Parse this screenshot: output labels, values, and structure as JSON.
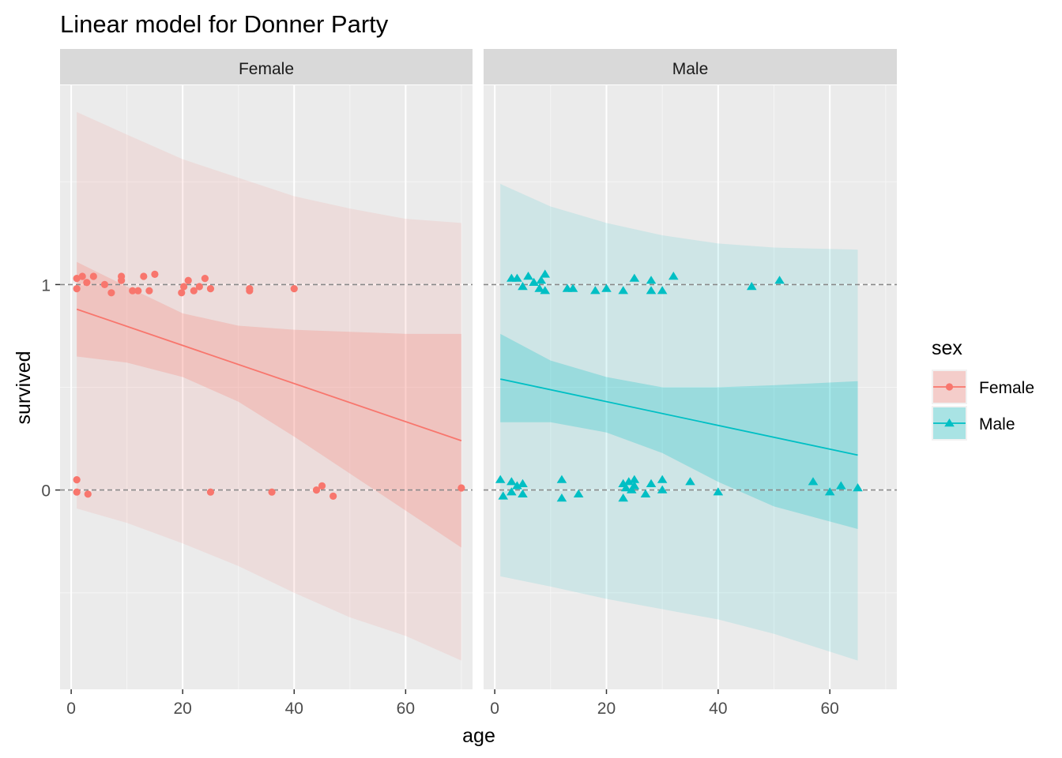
{
  "chart_data": {
    "type": "scatter",
    "title": "Linear model for Donner Party",
    "xlabel": "age",
    "ylabel": "survived",
    "x_ticks": [
      0,
      20,
      40,
      60
    ],
    "y_ticks": [
      0,
      1
    ],
    "xlim": [
      -2,
      72
    ],
    "ylim": [
      -0.97,
      1.97
    ],
    "reference_lines": [
      0,
      1
    ],
    "legend": {
      "title": "sex",
      "position": "right",
      "entries": [
        {
          "label": "Female",
          "color": "#F8766D",
          "shape": "circle"
        },
        {
          "label": "Male",
          "color": "#00BFC4",
          "shape": "triangle"
        }
      ]
    },
    "colors": {
      "panel_bg": "#EBEBEB",
      "strip_bg": "#D9D9D9",
      "female": "#F8766D",
      "male": "#00BFC4"
    },
    "panels": [
      {
        "label": "Female",
        "series": "Female",
        "fit": {
          "x": [
            1,
            70
          ],
          "y": [
            0.88,
            0.24
          ]
        },
        "ci_inner": {
          "x": [
            1,
            10,
            20,
            30,
            40,
            50,
            60,
            70
          ],
          "lower": [
            0.65,
            0.62,
            0.55,
            0.43,
            0.26,
            0.08,
            -0.1,
            -0.28
          ],
          "upper": [
            1.11,
            0.99,
            0.86,
            0.8,
            0.78,
            0.77,
            0.76,
            0.76
          ]
        },
        "ci_outer": {
          "x": [
            1,
            10,
            20,
            30,
            40,
            50,
            60,
            70
          ],
          "lower": [
            -0.09,
            -0.16,
            -0.26,
            -0.37,
            -0.5,
            -0.62,
            -0.71,
            -0.83
          ],
          "upper": [
            1.84,
            1.73,
            1.61,
            1.52,
            1.43,
            1.37,
            1.32,
            1.3
          ]
        },
        "points": [
          {
            "x": 1,
            "y": 1.03
          },
          {
            "x": 1,
            "y": 0.98
          },
          {
            "x": 2,
            "y": 1.04
          },
          {
            "x": 2.8,
            "y": 1.01
          },
          {
            "x": 4,
            "y": 1.04
          },
          {
            "x": 6,
            "y": 1.0
          },
          {
            "x": 7.2,
            "y": 0.96
          },
          {
            "x": 9,
            "y": 1.04
          },
          {
            "x": 9,
            "y": 1.02
          },
          {
            "x": 11,
            "y": 0.97
          },
          {
            "x": 12,
            "y": 0.97
          },
          {
            "x": 13,
            "y": 1.04
          },
          {
            "x": 14,
            "y": 0.97
          },
          {
            "x": 15,
            "y": 1.05
          },
          {
            "x": 19.8,
            "y": 0.96
          },
          {
            "x": 20.2,
            "y": 0.99
          },
          {
            "x": 21,
            "y": 1.02
          },
          {
            "x": 22,
            "y": 0.97
          },
          {
            "x": 23,
            "y": 0.99
          },
          {
            "x": 24,
            "y": 1.03
          },
          {
            "x": 25,
            "y": 0.98
          },
          {
            "x": 32,
            "y": 0.97
          },
          {
            "x": 32,
            "y": 0.98
          },
          {
            "x": 40,
            "y": 0.98
          },
          {
            "x": 1,
            "y": 0.05
          },
          {
            "x": 1,
            "y": -0.01
          },
          {
            "x": 3,
            "y": -0.02
          },
          {
            "x": 25,
            "y": -0.01
          },
          {
            "x": 36,
            "y": -0.01
          },
          {
            "x": 44,
            "y": 0.0
          },
          {
            "x": 45,
            "y": 0.02
          },
          {
            "x": 47,
            "y": -0.03
          },
          {
            "x": 70,
            "y": 0.01
          }
        ]
      },
      {
        "label": "Male",
        "series": "Male",
        "fit": {
          "x": [
            1,
            65
          ],
          "y": [
            0.54,
            0.17
          ]
        },
        "ci_inner": {
          "x": [
            1,
            10,
            20,
            30,
            40,
            50,
            65
          ],
          "lower": [
            0.33,
            0.33,
            0.28,
            0.18,
            0.04,
            -0.08,
            -0.19
          ],
          "upper": [
            0.76,
            0.63,
            0.55,
            0.5,
            0.5,
            0.51,
            0.53
          ]
        },
        "ci_outer": {
          "x": [
            1,
            10,
            20,
            30,
            40,
            50,
            65
          ],
          "lower": [
            -0.42,
            -0.47,
            -0.53,
            -0.58,
            -0.63,
            -0.7,
            -0.83
          ],
          "upper": [
            1.49,
            1.38,
            1.3,
            1.24,
            1.2,
            1.18,
            1.17
          ]
        },
        "points": [
          {
            "x": 3,
            "y": 1.03
          },
          {
            "x": 4,
            "y": 1.03
          },
          {
            "x": 5,
            "y": 0.99
          },
          {
            "x": 6,
            "y": 1.04
          },
          {
            "x": 7,
            "y": 1.01
          },
          {
            "x": 8,
            "y": 0.98
          },
          {
            "x": 8.3,
            "y": 1.02
          },
          {
            "x": 9,
            "y": 1.05
          },
          {
            "x": 9,
            "y": 0.97
          },
          {
            "x": 13,
            "y": 0.98
          },
          {
            "x": 14,
            "y": 0.98
          },
          {
            "x": 18,
            "y": 0.97
          },
          {
            "x": 20,
            "y": 0.98
          },
          {
            "x": 23,
            "y": 0.97
          },
          {
            "x": 25,
            "y": 1.03
          },
          {
            "x": 28,
            "y": 1.02
          },
          {
            "x": 28,
            "y": 0.97
          },
          {
            "x": 30,
            "y": 0.97
          },
          {
            "x": 32,
            "y": 1.04
          },
          {
            "x": 46,
            "y": 0.99
          },
          {
            "x": 51,
            "y": 1.02
          },
          {
            "x": 1,
            "y": 0.05
          },
          {
            "x": 1.5,
            "y": -0.03
          },
          {
            "x": 3,
            "y": 0.04
          },
          {
            "x": 3,
            "y": -0.01
          },
          {
            "x": 4,
            "y": 0.02
          },
          {
            "x": 5,
            "y": 0.03
          },
          {
            "x": 5,
            "y": -0.02
          },
          {
            "x": 12,
            "y": 0.05
          },
          {
            "x": 12,
            "y": -0.04
          },
          {
            "x": 15,
            "y": -0.02
          },
          {
            "x": 23,
            "y": 0.03
          },
          {
            "x": 23,
            "y": -0.04
          },
          {
            "x": 23.5,
            "y": 0.01
          },
          {
            "x": 24,
            "y": 0.04
          },
          {
            "x": 24.5,
            "y": 0.0
          },
          {
            "x": 25,
            "y": 0.05
          },
          {
            "x": 25,
            "y": 0.02
          },
          {
            "x": 27,
            "y": -0.02
          },
          {
            "x": 28,
            "y": 0.03
          },
          {
            "x": 30,
            "y": 0.0
          },
          {
            "x": 30,
            "y": 0.05
          },
          {
            "x": 35,
            "y": 0.04
          },
          {
            "x": 40,
            "y": -0.01
          },
          {
            "x": 57,
            "y": 0.04
          },
          {
            "x": 60,
            "y": -0.01
          },
          {
            "x": 62,
            "y": 0.02
          },
          {
            "x": 65,
            "y": 0.01
          }
        ]
      }
    ]
  }
}
